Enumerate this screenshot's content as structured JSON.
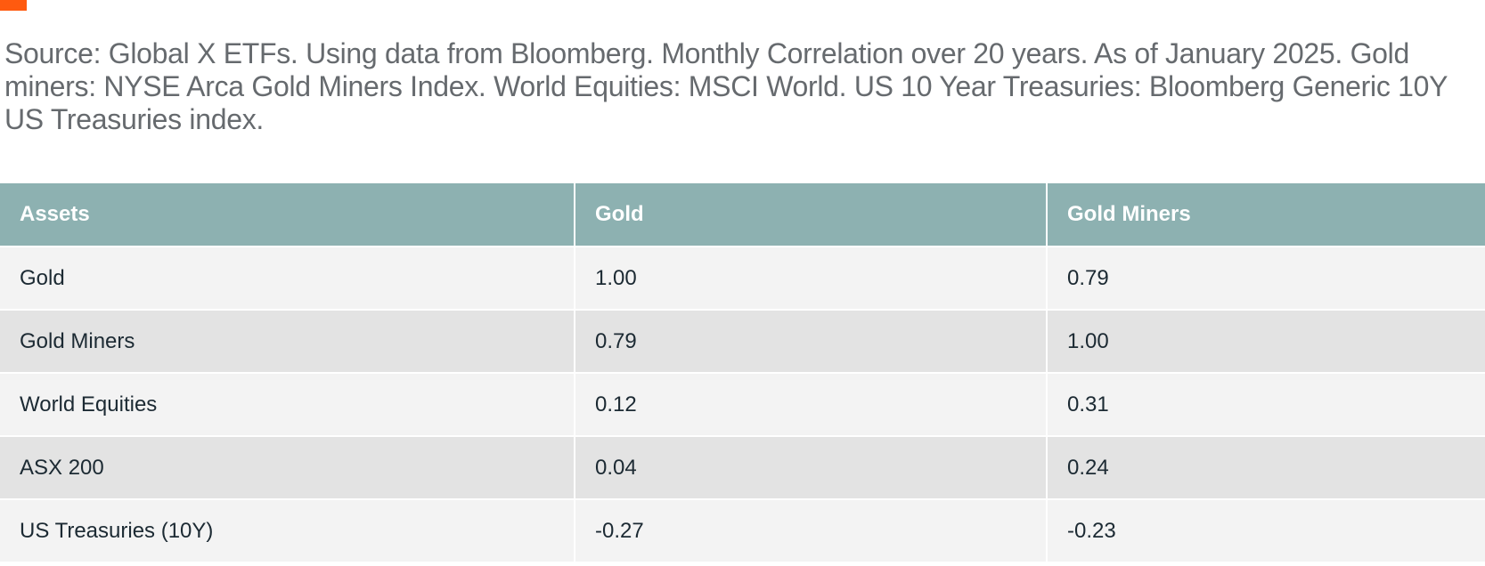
{
  "source_note": "Source: Global X ETFs. Using data from Bloomberg. Monthly Correlation over 20 years. As of January 2025. Gold miners: NYSE Arca Gold Miners Index. World Equities: MSCI World. US 10 Year Treasuries: Bloomberg Generic 10Y US Treasuries index.",
  "colors": {
    "accent": "#FF5A0F",
    "header_bg": "#8DB1B1",
    "row_light": "#F3F3F3",
    "row_dark": "#E3E3E3"
  },
  "table": {
    "headers": [
      "Assets",
      "Gold",
      "Gold Miners"
    ],
    "rows": [
      [
        "Gold",
        "1.00",
        "0.79"
      ],
      [
        "Gold Miners",
        "0.79",
        "1.00"
      ],
      [
        "World Equities",
        "0.12",
        "0.31"
      ],
      [
        "ASX 200",
        "0.04",
        "0.24"
      ],
      [
        "US Treasuries (10Y)",
        "-0.27",
        "-0.23"
      ]
    ]
  }
}
